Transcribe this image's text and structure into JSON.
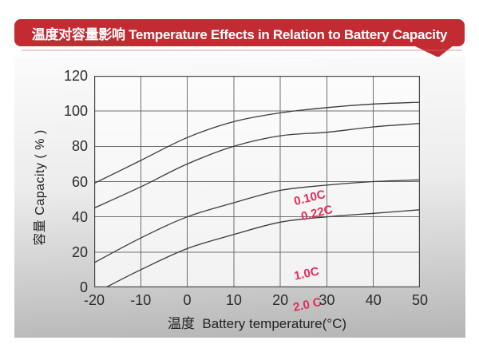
{
  "banner": {
    "title": "温度对容量影响 Temperature Effects in Relation to Battery Capacity",
    "bg_color": "#c12b31",
    "text_color": "#ffffff"
  },
  "chart_data": {
    "type": "line",
    "title": "温度对容量影响 Temperature Effects in Relation to Battery Capacity",
    "xlabel": "温度  Battery temperature(°C)",
    "ylabel": "容量 Capacity ( % )",
    "xlim": [
      -20,
      50
    ],
    "ylim": [
      0,
      120
    ],
    "x_ticks": [
      -20,
      -10,
      0,
      10,
      20,
      30,
      40,
      50
    ],
    "y_ticks": [
      0,
      20,
      40,
      60,
      80,
      100,
      120
    ],
    "grid": true,
    "legend_position": "inline-curve-labels",
    "curve_color": "#3b3b3b",
    "grid_color": "#6e6e6e",
    "series_label_color": "#e22d5a",
    "series": [
      {
        "name": "0.10C",
        "x": [
          -20,
          -10,
          0,
          10,
          20,
          30,
          40,
          50
        ],
        "values": [
          59,
          72,
          85,
          94,
          99,
          102,
          104,
          105
        ]
      },
      {
        "name": "0.22C",
        "x": [
          -20,
          -10,
          0,
          10,
          20,
          30,
          40,
          50
        ],
        "values": [
          45,
          57,
          70,
          80,
          86,
          88,
          91,
          93
        ]
      },
      {
        "name": "1.0C",
        "x": [
          -20,
          -10,
          0,
          10,
          20,
          30,
          40,
          50
        ],
        "values": [
          14,
          28,
          40,
          48,
          55,
          58,
          60,
          61
        ]
      },
      {
        "name": "2.0 C",
        "x": [
          -17.5,
          -10,
          0,
          10,
          20,
          30,
          40,
          50
        ],
        "values": [
          0,
          10,
          22,
          30,
          37,
          40,
          42,
          44
        ]
      }
    ]
  }
}
